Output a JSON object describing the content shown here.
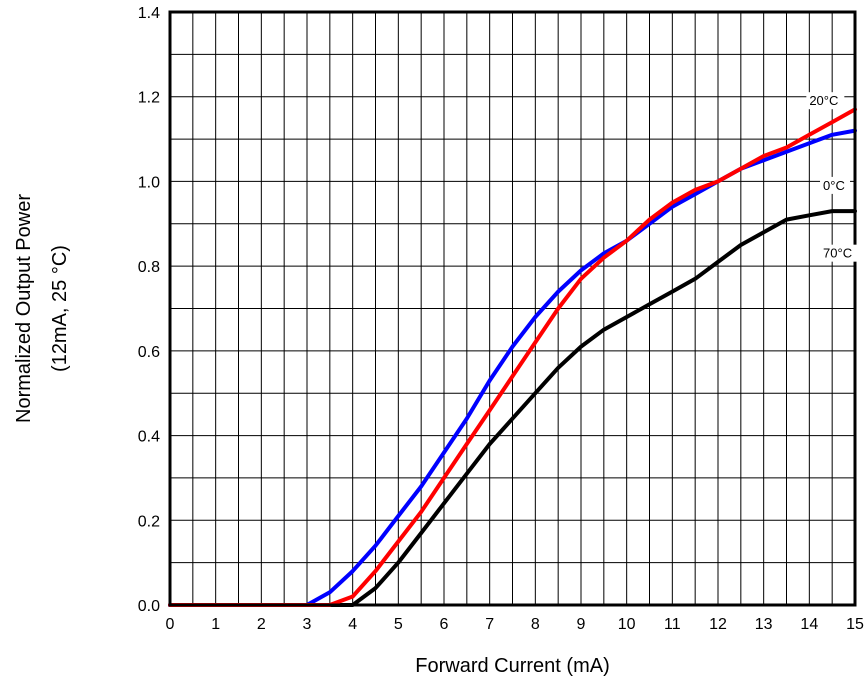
{
  "chart_data": {
    "type": "line",
    "title": "",
    "xlabel": "Forward Current (mA)",
    "ylabel_line1": "Normalized Output Power",
    "ylabel_line2": "(12mA, 25 °C)",
    "xlim": [
      0,
      15
    ],
    "ylim": [
      0,
      1.4
    ],
    "x_ticks": [
      0,
      1,
      2,
      3,
      4,
      5,
      6,
      7,
      8,
      9,
      10,
      11,
      12,
      13,
      14,
      15
    ],
    "y_ticks": [
      "0.0",
      "0.2",
      "0.4",
      "0.6",
      "0.8",
      "1.0",
      "1.2",
      "1.4"
    ],
    "grid": true,
    "series": [
      {
        "name": "20°C",
        "color": "#ff0000",
        "points": [
          [
            0,
            0
          ],
          [
            3.5,
            0
          ],
          [
            4,
            0.02
          ],
          [
            4.5,
            0.08
          ],
          [
            5,
            0.15
          ],
          [
            5.5,
            0.22
          ],
          [
            6,
            0.3
          ],
          [
            6.5,
            0.38
          ],
          [
            7,
            0.46
          ],
          [
            7.5,
            0.54
          ],
          [
            8,
            0.62
          ],
          [
            8.5,
            0.7
          ],
          [
            9,
            0.77
          ],
          [
            9.5,
            0.82
          ],
          [
            10,
            0.86
          ],
          [
            10.5,
            0.91
          ],
          [
            11,
            0.95
          ],
          [
            11.5,
            0.98
          ],
          [
            12,
            1.0
          ],
          [
            12.5,
            1.03
          ],
          [
            13,
            1.06
          ],
          [
            13.5,
            1.08
          ],
          [
            14,
            1.11
          ],
          [
            14.5,
            1.14
          ],
          [
            15,
            1.17
          ]
        ]
      },
      {
        "name": "0°C",
        "color": "#0000ff",
        "points": [
          [
            0,
            0
          ],
          [
            3,
            0
          ],
          [
            3.5,
            0.03
          ],
          [
            4,
            0.08
          ],
          [
            4.5,
            0.14
          ],
          [
            5,
            0.21
          ],
          [
            5.5,
            0.28
          ],
          [
            6,
            0.36
          ],
          [
            6.5,
            0.44
          ],
          [
            7,
            0.53
          ],
          [
            7.5,
            0.61
          ],
          [
            8,
            0.68
          ],
          [
            8.5,
            0.74
          ],
          [
            9,
            0.79
          ],
          [
            9.5,
            0.83
          ],
          [
            10,
            0.86
          ],
          [
            10.5,
            0.9
          ],
          [
            11,
            0.94
          ],
          [
            11.5,
            0.97
          ],
          [
            12,
            1.0
          ],
          [
            12.5,
            1.03
          ],
          [
            13,
            1.05
          ],
          [
            13.5,
            1.07
          ],
          [
            14,
            1.09
          ],
          [
            14.5,
            1.11
          ],
          [
            15,
            1.12
          ]
        ]
      },
      {
        "name": "70°C",
        "color": "#000000",
        "points": [
          [
            0,
            0
          ],
          [
            4,
            0
          ],
          [
            4.5,
            0.04
          ],
          [
            5,
            0.1
          ],
          [
            5.5,
            0.17
          ],
          [
            6,
            0.24
          ],
          [
            6.5,
            0.31
          ],
          [
            7,
            0.38
          ],
          [
            7.5,
            0.44
          ],
          [
            8,
            0.5
          ],
          [
            8.5,
            0.56
          ],
          [
            9,
            0.61
          ],
          [
            9.5,
            0.65
          ],
          [
            10,
            0.68
          ],
          [
            10.5,
            0.71
          ],
          [
            11,
            0.74
          ],
          [
            11.5,
            0.77
          ],
          [
            12,
            0.81
          ],
          [
            12.5,
            0.85
          ],
          [
            13,
            0.88
          ],
          [
            13.5,
            0.91
          ],
          [
            14,
            0.92
          ],
          [
            14.5,
            0.93
          ],
          [
            15,
            0.93
          ]
        ]
      }
    ],
    "series_labels": [
      {
        "name": "20°C",
        "x": 14.0,
        "y": 1.18
      },
      {
        "name": "0°C",
        "x": 14.3,
        "y": 0.98
      },
      {
        "name": "70°C",
        "x": 14.3,
        "y": 0.82
      }
    ]
  }
}
